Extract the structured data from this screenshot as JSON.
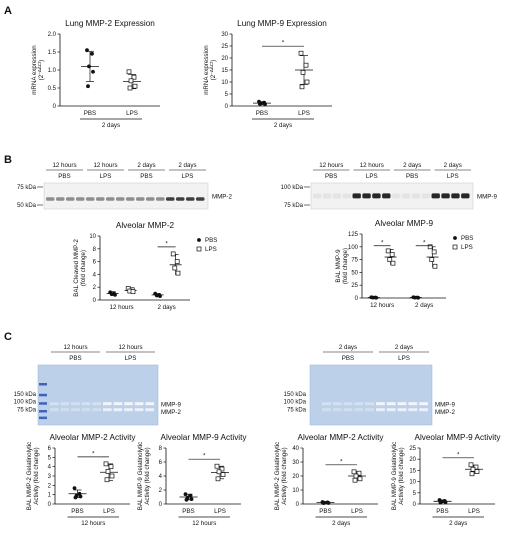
{
  "panels": {
    "a": "A",
    "b": "B",
    "c": "C"
  },
  "a1": {
    "title": "Lung MMP-2 Expression",
    "ylabel": "mRNA expression",
    "ylabel2": "(2",
    "ylabel_sup": "−ΔΔCt",
    "ylabel_end": ")",
    "yticks": [
      "0",
      "0.5",
      "1.0",
      "1.5",
      "2.0"
    ],
    "ymin": 0,
    "ymax": 2,
    "groups": [
      "PBS",
      "LPS"
    ],
    "bracket": "2 days",
    "series": [
      {
        "name": "PBS",
        "filled": true,
        "mean": 1.1,
        "sd": 0.42,
        "points": [
          1.55,
          1.45,
          1.1,
          0.95,
          0.55
        ]
      },
      {
        "name": "LPS",
        "filled": false,
        "mean": 0.68,
        "sd": 0.2,
        "points": [
          0.95,
          0.8,
          0.7,
          0.55,
          0.5
        ]
      }
    ],
    "sig": false
  },
  "a2": {
    "title": "Lung MMP-9 Expression",
    "ylabel": "mRNA expression",
    "ylabel2": "(2",
    "ylabel_sup": "−ΔΔCt",
    "ylabel_end": ")",
    "yticks": [
      "0",
      "5",
      "10",
      "15",
      "20",
      "25",
      "30"
    ],
    "ymin": 0,
    "ymax": 30,
    "groups": [
      "PBS",
      "LPS"
    ],
    "bracket": "2 days",
    "series": [
      {
        "name": "PBS",
        "filled": true,
        "mean": 1.2,
        "sd": 0.6,
        "points": [
          1.8,
          1.4,
          1.1,
          0.8,
          0.9
        ]
      },
      {
        "name": "LPS",
        "filled": false,
        "mean": 15,
        "sd": 6,
        "points": [
          22,
          17,
          14,
          10,
          8
        ]
      }
    ],
    "sig": true,
    "star": "*"
  },
  "b_left": {
    "times": [
      "12 hours",
      "12 hours",
      "2 days",
      "2 days"
    ],
    "treatments": [
      "PBS",
      "LPS",
      "PBS",
      "LPS"
    ],
    "markers": [
      "75 kDa",
      "50 kDa"
    ],
    "band_label": "MMP-2"
  },
  "b_right": {
    "times": [
      "12 hours",
      "12 hours",
      "2 days",
      "2 days"
    ],
    "treatments": [
      "PBS",
      "LPS",
      "PBS",
      "LPS"
    ],
    "markers": [
      "100 kDa",
      "75 kDa"
    ],
    "band_label": "MMP-9"
  },
  "b1": {
    "title": "Alveolar MMP-2",
    "ylabel": "BAL Cleaved MMP-2",
    "ylabel2": "(fold change)",
    "yticks": [
      "0",
      "2",
      "4",
      "6",
      "8",
      "10"
    ],
    "ymin": 0,
    "ymax": 10,
    "groups": [
      "12 hours",
      "2 days"
    ],
    "legend": [
      {
        "name": "PBS",
        "filled": true
      },
      {
        "name": "LPS",
        "filled": false
      }
    ],
    "series": [
      {
        "name": "PBS 12 hours",
        "filled": true,
        "x": 0,
        "mean": 1.0,
        "sd": 0.3,
        "points": [
          1.2,
          1.0,
          0.9,
          0.8
        ]
      },
      {
        "name": "LPS 12 hours",
        "filled": false,
        "x": 1,
        "mean": 1.5,
        "sd": 0.3,
        "points": [
          1.8,
          1.6,
          1.4,
          1.3
        ]
      },
      {
        "name": "PBS 2 days",
        "filled": true,
        "x": 2,
        "mean": 0.8,
        "sd": 0.2,
        "points": [
          1.0,
          0.8,
          0.7,
          0.6
        ]
      },
      {
        "name": "LPS 2 days",
        "filled": false,
        "x": 3,
        "mean": 5.5,
        "sd": 1.6,
        "points": [
          7.2,
          6.0,
          5.0,
          4.2
        ]
      }
    ],
    "sig": [
      {
        "x1": 2,
        "x2": 3,
        "y": 8.3,
        "star": "*"
      }
    ]
  },
  "b2": {
    "title": "Alveolar MMP-9",
    "ylabel": "BAL MMP-9",
    "ylabel2": "(fold change)",
    "yticks": [
      "0",
      "25",
      "50",
      "75",
      "100",
      "125"
    ],
    "ymin": 0,
    "ymax": 125,
    "groups": [
      "12 hours",
      "2 days"
    ],
    "legend": [
      {
        "name": "PBS",
        "filled": true
      },
      {
        "name": "LPS",
        "filled": false
      }
    ],
    "series": [
      {
        "name": "PBS 12 hours",
        "filled": true,
        "x": 0,
        "mean": 1,
        "sd": 0.5,
        "points": [
          1.5,
          1,
          0.8,
          0.5
        ]
      },
      {
        "name": "LPS 12 hours",
        "filled": false,
        "x": 1,
        "mean": 80,
        "sd": 15,
        "points": [
          92,
          85,
          75,
          68
        ]
      },
      {
        "name": "PBS 2 days",
        "filled": true,
        "x": 2,
        "mean": 1,
        "sd": 0.5,
        "points": [
          1.5,
          1,
          0.8,
          0.5
        ]
      },
      {
        "name": "LPS 2 days",
        "filled": false,
        "x": 3,
        "mean": 80,
        "sd": 20,
        "points": [
          100,
          90,
          75,
          62
        ]
      }
    ],
    "sig": [
      {
        "x1": 0,
        "x2": 1,
        "y": 102,
        "star": "*"
      },
      {
        "x1": 2,
        "x2": 3,
        "y": 102,
        "star": "*"
      }
    ]
  },
  "c_left_gel": {
    "times": [
      "12 hours",
      "12 hours"
    ],
    "treatments": [
      "PBS",
      "LPS"
    ],
    "markers": [
      "150 kDa",
      "100 kDa",
      "75 kDa"
    ],
    "bands": [
      "MMP-9",
      "MMP-2"
    ]
  },
  "c_right_gel": {
    "times": [
      "2 days",
      "2 days"
    ],
    "treatments": [
      "PBS",
      "LPS"
    ],
    "markers": [
      "150 kDa",
      "100 kDa",
      "75 kDa"
    ],
    "bands": [
      "MMP-9",
      "MMP-2"
    ]
  },
  "c1": {
    "title": "Alveolar MMP-2 Activity",
    "ylabel": "BAL MMP-2 Gelatinolytic",
    "ylabel2": "Activity (fold change)",
    "yticks": [
      "0",
      "1",
      "2",
      "3",
      "4",
      "5",
      "6"
    ],
    "ymin": 0,
    "ymax": 6,
    "groups": [
      "PBS",
      "LPS"
    ],
    "bracket": "12 hours",
    "series": [
      {
        "name": "PBS",
        "filled": true,
        "mean": 1.1,
        "sd": 0.4,
        "points": [
          1.7,
          1.1,
          0.9,
          0.8,
          0.7
        ]
      },
      {
        "name": "LPS",
        "filled": false,
        "mean": 3.4,
        "sd": 0.9,
        "points": [
          4.3,
          4.0,
          3.5,
          3.0,
          2.6
        ]
      }
    ],
    "sig": true,
    "star": "*"
  },
  "c2": {
    "title": "Alveolar MMP-9 Activity",
    "ylabel": "BAL MMP-9 Gelatinolytic",
    "ylabel2": "Activity (fold change)",
    "yticks": [
      "0",
      "2",
      "4",
      "6",
      "8"
    ],
    "ymin": 0,
    "ymax": 8,
    "groups": [
      "PBS",
      "LPS"
    ],
    "bracket": "12 hours",
    "series": [
      {
        "name": "PBS",
        "filled": true,
        "mean": 1.0,
        "sd": 0.4,
        "points": [
          1.4,
          1.2,
          0.9,
          0.7,
          0.6
        ]
      },
      {
        "name": "LPS",
        "filled": false,
        "mean": 4.5,
        "sd": 0.9,
        "points": [
          5.4,
          5.0,
          4.6,
          4.2,
          3.6
        ]
      }
    ],
    "sig": true,
    "star": "*"
  },
  "c3": {
    "title": "Alveolar MMP-2 Activity",
    "ylabel": "BAL MMP-2 Gelatinolytic",
    "ylabel2": "Activity (fold change)",
    "yticks": [
      "0",
      "10",
      "20",
      "30",
      "40"
    ],
    "ymin": 0,
    "ymax": 40,
    "groups": [
      "PBS",
      "LPS"
    ],
    "bracket": "2 days",
    "series": [
      {
        "name": "PBS",
        "filled": true,
        "mean": 1,
        "sd": 0.4,
        "points": [
          1.4,
          1.1,
          0.9,
          0.7,
          0.6
        ]
      },
      {
        "name": "LPS",
        "filled": false,
        "mean": 20,
        "sd": 3,
        "points": [
          23,
          22,
          20,
          18,
          17
        ]
      }
    ],
    "sig": true,
    "star": "*"
  },
  "c4": {
    "title": "Alveolar MMP-9 Activity",
    "ylabel": "BAL MMP-9 Gelatinolytic",
    "ylabel2": "Activity (fold change)",
    "yticks": [
      "0",
      "5",
      "10",
      "15",
      "20",
      "25"
    ],
    "ymin": 0,
    "ymax": 25,
    "groups": [
      "PBS",
      "LPS"
    ],
    "bracket": "2 days",
    "series": [
      {
        "name": "PBS",
        "filled": true,
        "mean": 1.2,
        "sd": 0.6,
        "points": [
          1.8,
          1.4,
          1.1,
          0.8,
          0.6
        ]
      },
      {
        "name": "LPS",
        "filled": false,
        "mean": 15.5,
        "sd": 1.8,
        "points": [
          17.5,
          16.5,
          15.5,
          14.5,
          13.5
        ]
      }
    ],
    "sig": true,
    "star": "*"
  },
  "chart_data": [
    {
      "type": "scatter",
      "title": "Lung MMP-2 Expression",
      "ylabel": "mRNA expression (2^−ΔΔCt)",
      "categories": [
        "PBS",
        "LPS"
      ],
      "ylim": [
        0,
        2
      ],
      "series": [
        {
          "name": "PBS",
          "values": [
            1.55,
            1.45,
            1.1,
            0.95,
            0.55
          ]
        },
        {
          "name": "LPS",
          "values": [
            0.95,
            0.8,
            0.7,
            0.55,
            0.5
          ]
        }
      ]
    },
    {
      "type": "scatter",
      "title": "Lung MMP-9 Expression",
      "ylabel": "mRNA expression (2^−ΔΔCt)",
      "categories": [
        "PBS",
        "LPS"
      ],
      "ylim": [
        0,
        30
      ],
      "series": [
        {
          "name": "PBS",
          "values": [
            1.8,
            1.4,
            1.1,
            0.8,
            0.9
          ]
        },
        {
          "name": "LPS",
          "values": [
            22,
            17,
            14,
            10,
            8
          ]
        }
      ]
    },
    {
      "type": "scatter",
      "title": "Alveolar MMP-2",
      "ylabel": "BAL Cleaved MMP-2 (fold change)",
      "categories": [
        "12 hours",
        "2 days"
      ],
      "ylim": [
        0,
        10
      ],
      "series": [
        {
          "name": "PBS",
          "values": [
            1.0,
            0.8
          ]
        },
        {
          "name": "LPS",
          "values": [
            1.5,
            5.5
          ]
        }
      ]
    },
    {
      "type": "scatter",
      "title": "Alveolar MMP-9",
      "ylabel": "BAL MMP-9 (fold change)",
      "categories": [
        "12 hours",
        "2 days"
      ],
      "ylim": [
        0,
        125
      ],
      "series": [
        {
          "name": "PBS",
          "values": [
            1,
            1
          ]
        },
        {
          "name": "LPS",
          "values": [
            80,
            80
          ]
        }
      ]
    },
    {
      "type": "scatter",
      "title": "Alveolar MMP-2 Activity",
      "ylabel": "BAL MMP-2 Gelatinolytic Activity (fold change)",
      "categories": [
        "PBS",
        "LPS"
      ],
      "ylim": [
        0,
        6
      ],
      "series": [
        {
          "name": "PBS",
          "values": [
            1.7,
            1.1,
            0.9,
            0.8,
            0.7
          ]
        },
        {
          "name": "LPS",
          "values": [
            4.3,
            4.0,
            3.5,
            3.0,
            2.6
          ]
        }
      ]
    },
    {
      "type": "scatter",
      "title": "Alveolar MMP-9 Activity",
      "ylabel": "BAL MMP-9 Gelatinolytic Activity (fold change)",
      "categories": [
        "PBS",
        "LPS"
      ],
      "ylim": [
        0,
        8
      ],
      "series": [
        {
          "name": "PBS",
          "values": [
            1.4,
            1.2,
            0.9,
            0.7,
            0.6
          ]
        },
        {
          "name": "LPS",
          "values": [
            5.4,
            5.0,
            4.6,
            4.2,
            3.6
          ]
        }
      ]
    },
    {
      "type": "scatter",
      "title": "Alveolar MMP-2 Activity",
      "ylabel": "BAL MMP-2 Gelatinolytic Activity (fold change)",
      "categories": [
        "PBS",
        "LPS"
      ],
      "ylim": [
        0,
        40
      ],
      "series": [
        {
          "name": "PBS",
          "values": [
            1.4,
            1.1,
            0.9,
            0.7,
            0.6
          ]
        },
        {
          "name": "LPS",
          "values": [
            23,
            22,
            20,
            18,
            17
          ]
        }
      ]
    },
    {
      "type": "scatter",
      "title": "Alveolar MMP-9 Activity",
      "ylabel": "BAL MMP-9 Gelatinolytic Activity (fold change)",
      "categories": [
        "PBS",
        "LPS"
      ],
      "ylim": [
        0,
        25
      ],
      "series": [
        {
          "name": "PBS",
          "values": [
            1.8,
            1.4,
            1.1,
            0.8,
            0.6
          ]
        },
        {
          "name": "LPS",
          "values": [
            17.5,
            16.5,
            15.5,
            14.5,
            13.5
          ]
        }
      ]
    }
  ]
}
